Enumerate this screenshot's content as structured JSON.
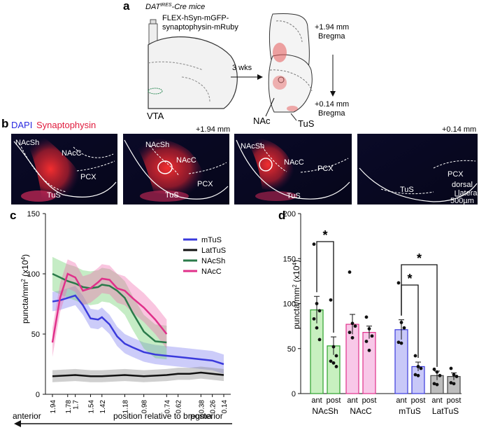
{
  "panels": {
    "a": "a",
    "b": "b",
    "c": "c",
    "d": "d"
  },
  "panel_a": {
    "mouse_line_main": "DAT",
    "mouse_line_sup": "IRES",
    "mouse_line_rest": "-Cre mice",
    "virus_line1": "FLEX-hSyn-mGFP-",
    "virus_line2": "synaptophysin-mRuby",
    "vta_label": "VTA",
    "arrow_label": "3 wks",
    "bregma_top_value": "+1.94 mm",
    "bregma_top_word": "Bregma",
    "bregma_bottom_value": "+0.14 mm",
    "bregma_bottom_word": "Bregma",
    "nac_label": "NAc",
    "tus_label": "TuS"
  },
  "panel_b": {
    "legend_dapi": "DAPI",
    "legend_syn": "Synaptophysin",
    "left_mm": "+1.94 mm",
    "right_mm": "+0.14 mm",
    "img1": {
      "nacsh": "NAcSh",
      "nacc": "NAcC",
      "pcx": "PCX",
      "tus": "TuS"
    },
    "img2": {
      "nacsh": "NAcSh",
      "nacc": "NAcC",
      "pcx": "PCX",
      "tus": "TuS"
    },
    "img3": {
      "nacsh": "NAcSh",
      "nacc": "NAcC",
      "pcx": "PCX",
      "tus": "TuS"
    },
    "img4": {
      "pcx": "PCX",
      "tus": "TuS",
      "dorsal": "dorsal",
      "lateral": "lateral",
      "scale": "500µm"
    }
  },
  "colors": {
    "mTuS": "#3a3adc",
    "LatTuS": "#111111",
    "NAcSh": "#2a7a4a",
    "NAcC": "#e0308a",
    "ant_NAcSh": "#c8f0c0",
    "ant_NAcC": "#f8c8e8",
    "ant_mTuS": "#c8c8f8",
    "LatTuS_bar": "#bdbdbd"
  },
  "chart_data": [
    {
      "type": "line",
      "panel": "c",
      "title": "",
      "ylabel_main": "puncta/mm",
      "ylabel_sup": "2",
      "ylabel_unit": "(x10",
      "ylabel_unit_sup": "4",
      "ylabel_unit_end": ")",
      "xlabel": "position relative to bregma",
      "x_left_label": "anterior",
      "x_right_label": "posterior",
      "ylim": [
        0,
        150
      ],
      "yticks": [
        0,
        50,
        100,
        150
      ],
      "xlim": [
        1.94,
        0.14
      ],
      "xticks": [
        "1.94",
        "1.78",
        "1.7",
        "1.54",
        "1.42",
        "1.18",
        "0.98",
        "0.74",
        "0.62",
        "0.38",
        "0.26",
        "0.14"
      ],
      "series": [
        {
          "name": "mTuS",
          "x": [
            1.94,
            1.86,
            1.78,
            1.7,
            1.62,
            1.54,
            1.46,
            1.42,
            1.34,
            1.26,
            1.18,
            1.1,
            0.98,
            0.86,
            0.74,
            0.62,
            0.5,
            0.38,
            0.26,
            0.14
          ],
          "values": [
            77,
            78,
            80,
            82,
            74,
            63,
            62,
            64,
            58,
            48,
            42,
            39,
            35,
            33,
            32,
            31,
            30,
            29,
            28,
            25
          ]
        },
        {
          "name": "LatTuS",
          "x": [
            1.94,
            1.7,
            1.54,
            1.42,
            1.18,
            0.98,
            0.74,
            0.62,
            0.5,
            0.38,
            0.26,
            0.14
          ],
          "values": [
            15,
            16,
            15,
            15,
            16,
            15,
            16,
            17,
            17,
            18,
            17,
            16
          ]
        },
        {
          "name": "NAcSh",
          "x": [
            1.94,
            1.86,
            1.78,
            1.7,
            1.62,
            1.54,
            1.46,
            1.42,
            1.34,
            1.26,
            1.18,
            1.1,
            0.98,
            0.86,
            0.74
          ],
          "values": [
            100,
            97,
            94,
            92,
            89,
            88,
            89,
            91,
            90,
            86,
            80,
            68,
            52,
            44,
            43
          ]
        },
        {
          "name": "NAcC",
          "x": [
            1.94,
            1.86,
            1.78,
            1.7,
            1.62,
            1.54,
            1.46,
            1.42,
            1.34,
            1.26,
            1.18,
            1.1,
            0.98,
            0.86,
            0.74
          ],
          "values": [
            43,
            80,
            100,
            97,
            86,
            88,
            93,
            96,
            95,
            88,
            86,
            80,
            72,
            62,
            50
          ]
        }
      ],
      "legend": [
        "mTuS",
        "LatTuS",
        "NAcSh",
        "NAcC"
      ]
    },
    {
      "type": "bar",
      "panel": "d",
      "ylabel_main": "puncta/mm",
      "ylabel_sup": "2",
      "ylabel_unit": "(x10",
      "ylabel_unit_sup": "4",
      "ylabel_unit_end": ")",
      "ylim": [
        0,
        200
      ],
      "yticks": [
        0,
        50,
        100,
        150,
        200
      ],
      "groups": [
        "NAcSh",
        "NAcC",
        "mTuS",
        "LatTuS"
      ],
      "bar_labels": [
        "ant",
        "post"
      ],
      "series": [
        {
          "group": "NAcSh",
          "ant": 93,
          "ant_sem": 15,
          "post": 53,
          "post_sem": 10,
          "ant_points": [
            166,
            100,
            92,
            83,
            73,
            60
          ],
          "post_points": [
            104,
            52,
            42,
            36,
            34,
            30
          ]
        },
        {
          "group": "NAcC",
          "ant": 77,
          "ant_sem": 11,
          "post": 68,
          "post_sem": 7,
          "ant_points": [
            135,
            78,
            75,
            68,
            62
          ],
          "post_points": [
            85,
            72,
            64,
            58,
            48
          ]
        },
        {
          "group": "mTuS",
          "ant": 71,
          "ant_sem": 11,
          "post": 30,
          "post_sem": 5,
          "ant_points": [
            123,
            79,
            73,
            57,
            56
          ],
          "post_points": [
            42,
            30,
            28,
            21,
            20
          ]
        },
        {
          "group": "LatTuS",
          "ant": 20,
          "ant_sem": 5,
          "post": 19,
          "post_sem": 4,
          "ant_points": [
            27,
            24,
            20,
            11,
            10
          ],
          "post_points": [
            28,
            21,
            19,
            12,
            11
          ]
        }
      ],
      "significance": [
        {
          "between": "NAcSh ant vs NAcSh post",
          "mark": "*"
        },
        {
          "between": "mTuS ant vs mTuS post",
          "mark": "*"
        },
        {
          "between": "mTuS ant vs LatTuS ant",
          "mark": "*"
        }
      ]
    }
  ]
}
